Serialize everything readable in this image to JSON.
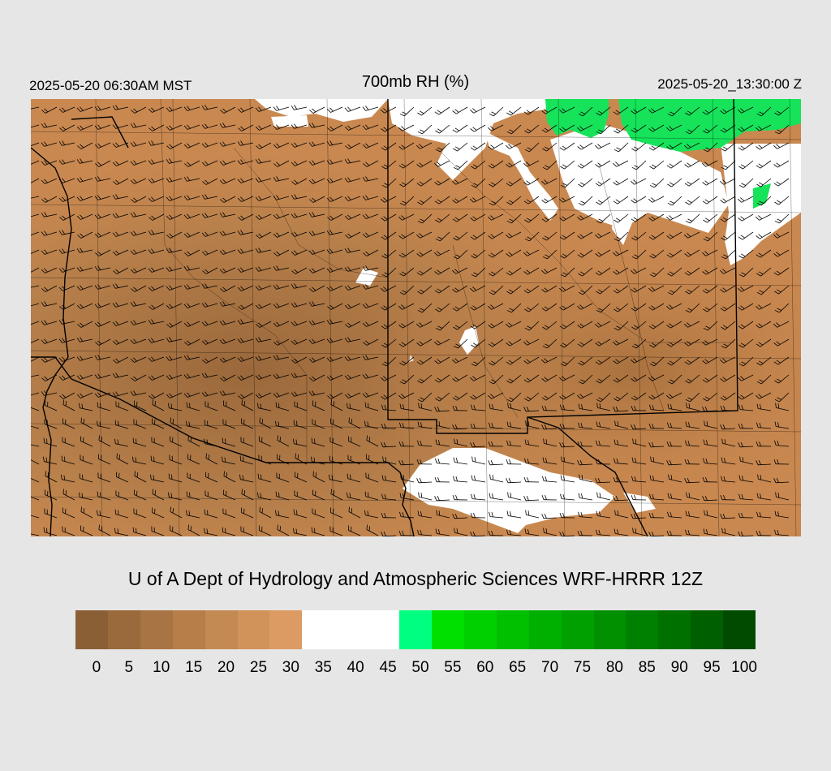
{
  "header": {
    "time_local": "2025-05-20 06:30AM MST",
    "title": "700mb RH (%)",
    "time_utc": "2025-05-20_13:30:00 Z"
  },
  "credit": "U of A Dept of Hydrology and Atmospheric Sciences WRF-HRRR 12Z",
  "legend": {
    "ticks": [
      "0",
      "5",
      "10",
      "15",
      "20",
      "25",
      "30",
      "35",
      "40",
      "45",
      "50",
      "55",
      "60",
      "65",
      "70",
      "75",
      "80",
      "85",
      "90",
      "95",
      "100"
    ],
    "colors": [
      "#8b5f36",
      "#9b6a3c",
      "#a97443",
      "#b77e4a",
      "#c48a53",
      "#d2935a",
      "#dc9b62",
      "#ffffff",
      "#ffffff",
      "#ffffff",
      "#00ff80",
      "#00e000",
      "#00d000",
      "#00c000",
      "#00b000",
      "#00a000",
      "#009000",
      "#008000",
      "#007000",
      "#006000",
      "#004b00"
    ]
  },
  "map": {
    "base_color": "#c98850",
    "dark_color": "#9e6a3c",
    "moist_color": "#ffffff",
    "green_color": "#16e35a",
    "background_color": "#e6e6e6"
  }
}
